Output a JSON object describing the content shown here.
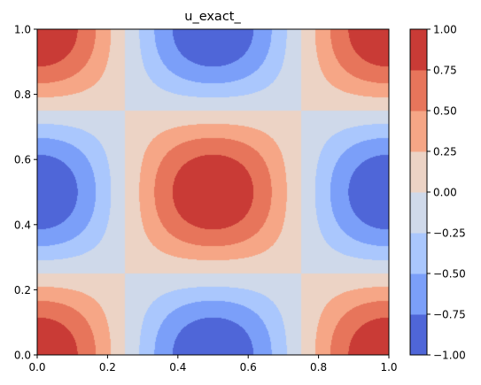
{
  "chart_data": {
    "type": "contour",
    "title": "u_exact_",
    "xlabel": "",
    "ylabel": "",
    "xlim": [
      0.0,
      1.0
    ],
    "ylim": [
      0.0,
      1.0
    ],
    "x_ticks": [
      "0.0",
      "0.2",
      "0.4",
      "0.6",
      "0.8",
      "1.0"
    ],
    "y_ticks": [
      "0.0",
      "0.2",
      "0.4",
      "0.6",
      "0.8",
      "1.0"
    ],
    "grid": false,
    "colormap": "coolwarm",
    "levels": [
      -1.0,
      -0.75,
      -0.5,
      -0.25,
      0.0,
      0.25,
      0.5,
      0.75,
      1.0
    ],
    "level_colors": [
      "#4f66d8",
      "#7b9ff9",
      "#aac7fd",
      "#cfd9ea",
      "#ecd3c5",
      "#f6a686",
      "#e7755b",
      "#c93b36"
    ],
    "colorbar": {
      "position": "right",
      "tick_labels": [
        "1.00",
        "0.75",
        "0.50",
        "0.25",
        "0.00",
        "−0.25",
        "−0.50",
        "−0.75",
        "−1.00"
      ]
    },
    "field": {
      "description_of_values": "u = cos(2πx)·cos(2πy) over x,y in [0,1]",
      "peaks": [
        {
          "x": 0.0,
          "y": 0.0,
          "value": 1.0
        },
        {
          "x": 1.0,
          "y": 0.0,
          "value": 1.0
        },
        {
          "x": 0.0,
          "y": 1.0,
          "value": 1.0
        },
        {
          "x": 1.0,
          "y": 1.0,
          "value": 1.0
        },
        {
          "x": 0.5,
          "y": 0.5,
          "value": 1.0
        }
      ],
      "troughs": [
        {
          "x": 0.5,
          "y": 0.0,
          "value": -1.0
        },
        {
          "x": 0.5,
          "y": 1.0,
          "value": -1.0
        },
        {
          "x": 0.0,
          "y": 0.5,
          "value": -1.0
        },
        {
          "x": 1.0,
          "y": 0.5,
          "value": -1.0
        }
      ]
    }
  }
}
